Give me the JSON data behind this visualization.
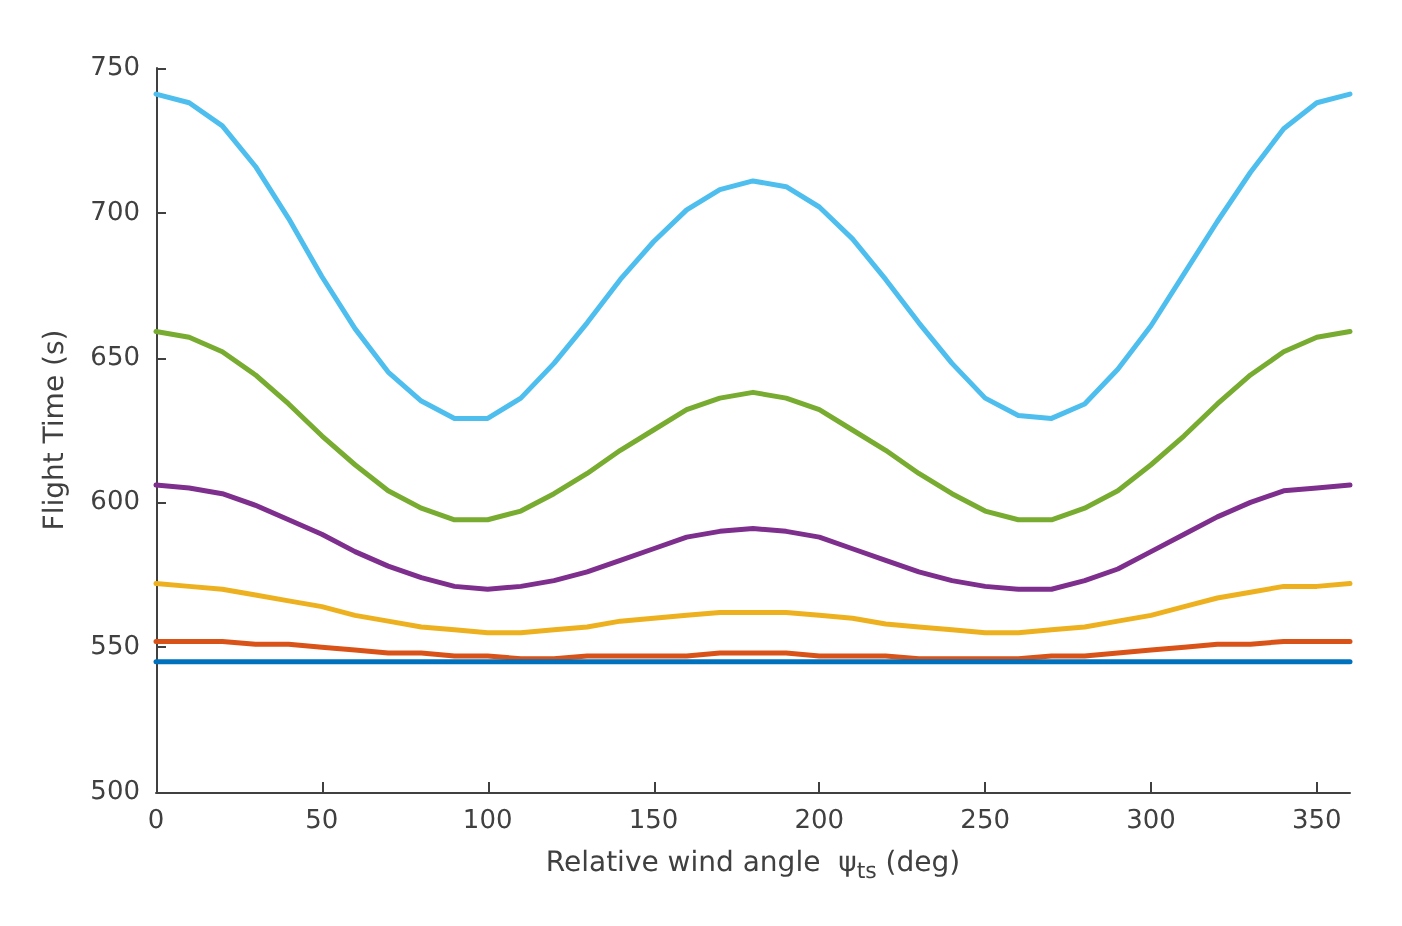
{
  "chart_data": {
    "type": "line",
    "xlabel": "Relative wind angle  ψ$_{ts}$ (deg)",
    "ylabel": "Flight Time (s)",
    "xlim": [
      0,
      360
    ],
    "xticks": [
      0,
      50,
      100,
      150,
      200,
      250,
      300,
      350
    ],
    "ylim": [
      500,
      750
    ],
    "yticks": [
      500,
      550,
      600,
      650,
      700,
      750
    ],
    "grid": false,
    "marker": "none",
    "line_style": "solid",
    "x": [
      0,
      10,
      20,
      30,
      40,
      50,
      60,
      70,
      80,
      90,
      100,
      110,
      120,
      130,
      140,
      150,
      160,
      170,
      180,
      190,
      200,
      210,
      220,
      230,
      240,
      250,
      260,
      270,
      280,
      290,
      300,
      310,
      320,
      330,
      340,
      350,
      360
    ],
    "series": [
      {
        "color": "#4dbeee",
        "values": [
          741,
          738,
          730,
          716,
          698,
          678,
          660,
          645,
          635,
          629,
          629,
          636,
          648,
          662,
          677,
          690,
          701,
          708,
          711,
          709,
          702,
          691,
          677,
          662,
          648,
          636,
          630,
          629,
          634,
          646,
          661,
          679,
          697,
          714,
          729,
          738,
          741
        ]
      },
      {
        "color": "#77ac30",
        "values": [
          659,
          657,
          652,
          644,
          634,
          623,
          613,
          604,
          598,
          594,
          594,
          597,
          603,
          610,
          618,
          625,
          632,
          636,
          638,
          636,
          632,
          625,
          618,
          610,
          603,
          597,
          594,
          594,
          598,
          604,
          613,
          623,
          634,
          644,
          652,
          657,
          659
        ]
      },
      {
        "color": "#7e2f8e",
        "values": [
          606,
          605,
          603,
          599,
          594,
          589,
          583,
          578,
          574,
          571,
          570,
          571,
          573,
          576,
          580,
          584,
          588,
          590,
          591,
          590,
          588,
          584,
          580,
          576,
          573,
          571,
          570,
          570,
          573,
          577,
          583,
          589,
          595,
          600,
          604,
          605,
          606
        ]
      },
      {
        "color": "#edb120",
        "values": [
          572,
          571,
          570,
          568,
          566,
          564,
          561,
          559,
          557,
          556,
          555,
          555,
          556,
          557,
          559,
          560,
          561,
          562,
          562,
          562,
          561,
          560,
          558,
          557,
          556,
          555,
          555,
          556,
          557,
          559,
          561,
          564,
          567,
          569,
          571,
          571,
          572
        ]
      },
      {
        "color": "#d95319",
        "values": [
          552,
          552,
          552,
          551,
          551,
          550,
          549,
          548,
          548,
          547,
          547,
          546,
          546,
          547,
          547,
          547,
          547,
          548,
          548,
          548,
          547,
          547,
          547,
          546,
          546,
          546,
          546,
          547,
          547,
          548,
          549,
          550,
          551,
          551,
          552,
          552,
          552
        ]
      },
      {
        "color": "#0072bd",
        "values": [
          545,
          545,
          545,
          545,
          545,
          545,
          545,
          545,
          545,
          545,
          545,
          545,
          545,
          545,
          545,
          545,
          545,
          545,
          545,
          545,
          545,
          545,
          545,
          545,
          545,
          545,
          545,
          545,
          545,
          545,
          545,
          545,
          545,
          545,
          545,
          545,
          545
        ]
      }
    ]
  }
}
